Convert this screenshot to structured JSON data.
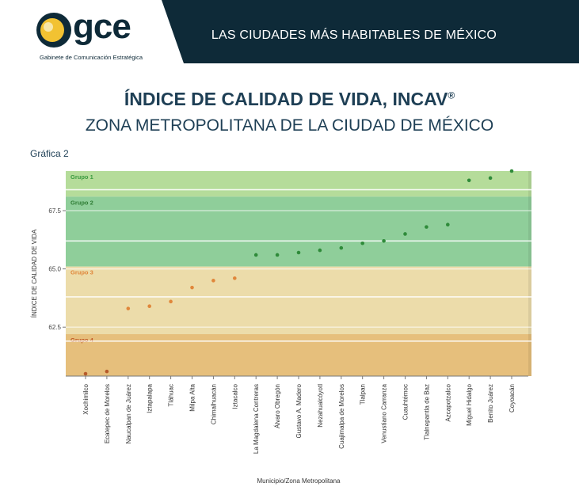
{
  "header": {
    "logo_text": "gce",
    "logo_subtitle": "Gabinete de Comunicación Estratégica",
    "banner_title": "LAS CIUDADES MÁS HABITABLES DE MÉXICO"
  },
  "titles": {
    "main": "ÍNDICE DE CALIDAD DE VIDA, INCAV",
    "main_mark": "®",
    "subtitle": "ZONA METROPOLITANA DE LA CIUDAD DE MÉXICO",
    "chart_label": "Gráfica 2"
  },
  "colors": {
    "banner": "#0e2a38",
    "grupo1": "#b5dc9a",
    "grupo2": "#8fce9a",
    "grupo3": "#ecdcaa",
    "grupo4": "#e6bf7c",
    "green_point": "#2f8b3a",
    "orange_point": "#e0873b",
    "red_point": "#b65a2a"
  },
  "chart_data": {
    "type": "scatter",
    "xlabel": "Municipio/Zona Metropolitana",
    "ylabel": "ÍNDICE DE CALIDAD DE VIDA",
    "yticks": [
      62.5,
      65.0,
      67.5
    ],
    "ylim": [
      60.4,
      69.2
    ],
    "bands": [
      {
        "name": "Grupo 1",
        "from": 68.1,
        "to": 69.2,
        "color": "#b5dc9a",
        "label_color": "#3a9a3f"
      },
      {
        "name": "Grupo 2",
        "from": 65.1,
        "to": 68.1,
        "color": "#8fce9a",
        "label_color": "#2f7d35"
      },
      {
        "name": "Grupo 3",
        "from": 62.2,
        "to": 65.1,
        "color": "#ecdcaa",
        "label_color": "#e0873b"
      },
      {
        "name": "Grupo 4",
        "from": 60.4,
        "to": 62.2,
        "color": "#e6bf7c",
        "label_color": "#c05a27"
      }
    ],
    "categories": [
      "Xochimilco",
      "Ecatepec de Morelos",
      "Naucalpan de Juárez",
      "Iztapalapa",
      "Tláhuac",
      "Milpa Alta",
      "Chimalhuacán",
      "Iztacalco",
      "La Magdalena Contreras",
      "Álvaro Obregón",
      "Gustavo A. Madero",
      "Nezahualcóyotl",
      "Cuajimalpa de Morelos",
      "Tlalpan",
      "Venustiano Carranza",
      "Cuauhtémoc",
      "Tlalnepantla de Baz",
      "Azcapotzalco",
      "Miguel Hidalgo",
      "Benito Juárez",
      "Coyoacán"
    ],
    "values": [
      60.5,
      60.6,
      63.3,
      63.4,
      63.6,
      64.2,
      64.5,
      64.6,
      65.6,
      65.6,
      65.7,
      65.8,
      65.9,
      66.1,
      66.2,
      66.5,
      66.8,
      66.9,
      68.8,
      68.9,
      69.2
    ],
    "groups": [
      4,
      4,
      3,
      3,
      3,
      3,
      3,
      3,
      2,
      2,
      2,
      2,
      2,
      2,
      2,
      2,
      2,
      2,
      1,
      1,
      1
    ]
  }
}
